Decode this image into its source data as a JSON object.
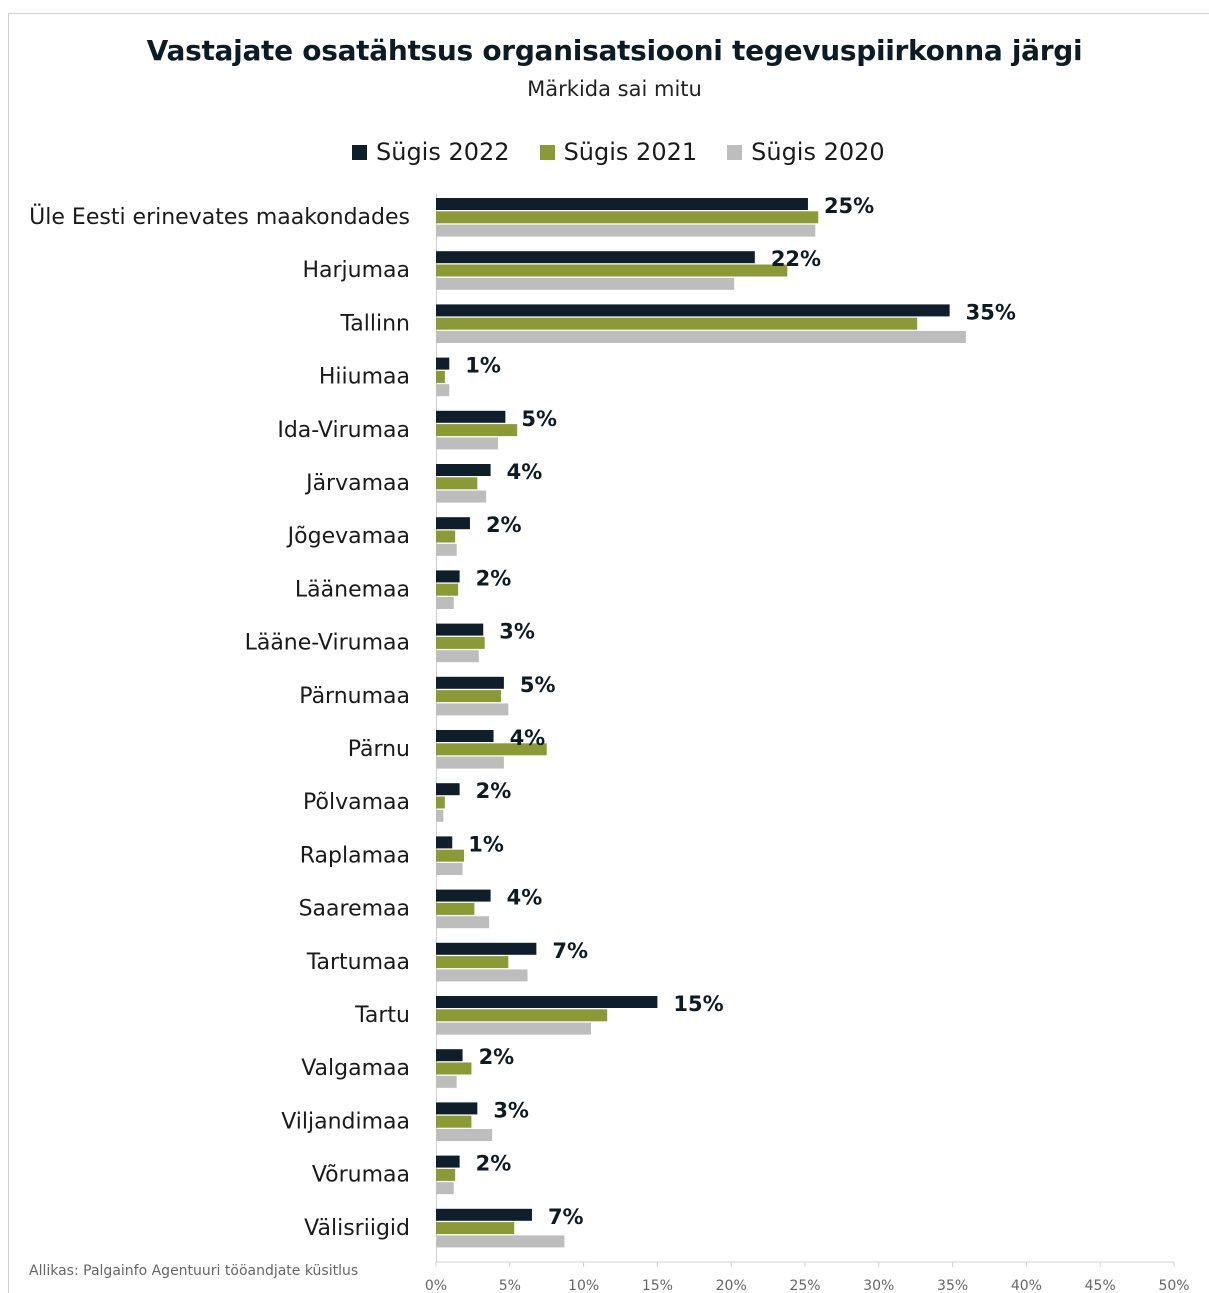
{
  "colors": {
    "sygis2022": "#0e1f2b",
    "sygis2021": "#8c9a36",
    "sygis2020": "#bdbdbd"
  },
  "chart_data": {
    "type": "bar",
    "orientation": "horizontal",
    "title": "Vastajate osatähtsus organisatsiooni tegevuspiirkonna järgi",
    "subtitle": "Märkida sai mitu",
    "categories": [
      "Üle Eesti erinevates maakondades",
      "Harjumaa",
      "Tallinn",
      "Hiiumaa",
      "Ida-Virumaa",
      "Järvamaa",
      "Jõgevamaa",
      "Läänemaa",
      "Lääne-Virumaa",
      "Pärnumaa",
      "Pärnu",
      "Põlvamaa",
      "Raplamaa",
      "Saaremaa",
      "Tartumaa",
      "Tartu",
      "Valgamaa",
      "Viljandimaa",
      "Võrumaa",
      "Välisriigid"
    ],
    "series": [
      {
        "name": "Sügis 2022",
        "values": [
          25.2,
          21.6,
          34.8,
          0.9,
          4.7,
          3.7,
          2.3,
          1.6,
          3.2,
          4.6,
          3.9,
          1.6,
          1.1,
          3.7,
          6.8,
          15.0,
          1.8,
          2.8,
          1.6,
          6.5
        ]
      },
      {
        "name": "Sügis 2021",
        "values": [
          25.9,
          23.8,
          32.6,
          0.6,
          5.5,
          2.8,
          1.3,
          1.5,
          3.3,
          4.4,
          7.5,
          0.6,
          1.9,
          2.6,
          4.9,
          11.6,
          2.4,
          2.4,
          1.3,
          5.3
        ]
      },
      {
        "name": "Sügis 2020",
        "values": [
          25.7,
          20.2,
          35.9,
          0.9,
          4.2,
          3.4,
          1.4,
          1.2,
          2.9,
          4.9,
          4.6,
          0.5,
          1.8,
          3.6,
          6.2,
          10.5,
          1.4,
          3.8,
          1.2,
          8.7
        ]
      }
    ],
    "data_labels": [
      "25%",
      "22%",
      "35%",
      "1%",
      "5%",
      "4%",
      "2%",
      "2%",
      "3%",
      "5%",
      "4%",
      "2%",
      "1%",
      "4%",
      "7%",
      "15%",
      "2%",
      "3%",
      "2%",
      "7%"
    ],
    "x_ticks": [
      "0%",
      "5%",
      "10%",
      "15%",
      "20%",
      "25%",
      "30%",
      "35%",
      "40%",
      "45%",
      "50%"
    ],
    "xlim": [
      0,
      50
    ],
    "grid": false,
    "legend": "top"
  },
  "source": "Allikas: Palgainfo Agentuuri tööandjate küsitlus"
}
